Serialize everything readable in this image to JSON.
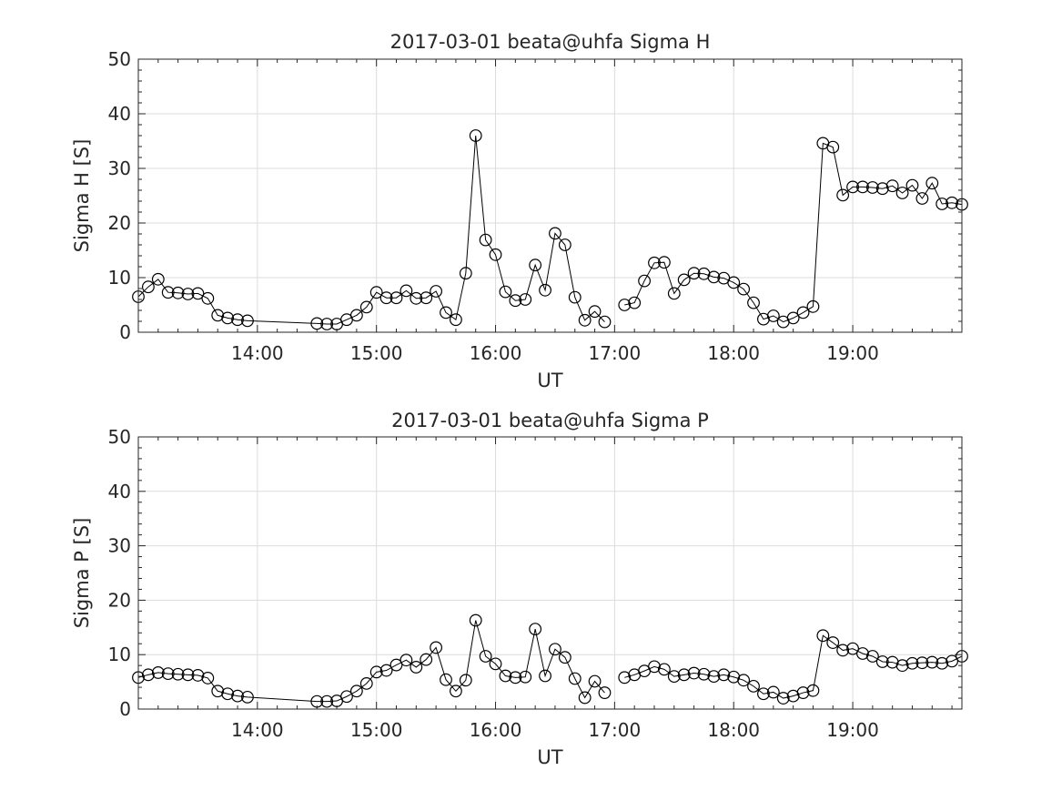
{
  "chart_data": [
    {
      "type": "line",
      "title": "2017-03-01  beata@uhfa Sigma H",
      "xlabel": "UT",
      "ylabel": "Sigma H [S]",
      "ylim": [
        0,
        50
      ],
      "yticks": [
        0,
        10,
        20,
        30,
        40,
        50
      ],
      "xlim": [
        "13:00",
        "19:55"
      ],
      "xticks": [
        "14:00",
        "15:00",
        "16:00",
        "17:00",
        "18:00",
        "19:00"
      ],
      "grid": true,
      "marker": "circle",
      "series": [
        {
          "x": [
            "13:00",
            "13:05",
            "13:10",
            "13:15",
            "13:20",
            "13:25",
            "13:30",
            "13:35",
            "13:40",
            "13:45",
            "13:50",
            "13:55",
            "14:30",
            "14:35",
            "14:40",
            "14:45",
            "14:50",
            "14:55",
            "15:00",
            "15:05",
            "15:10",
            "15:15",
            "15:20",
            "15:25",
            "15:30",
            "15:35",
            "15:40",
            "15:45",
            "15:50",
            "15:55",
            "16:00",
            "16:05",
            "16:10",
            "16:15",
            "16:20",
            "16:25",
            "16:30",
            "16:35",
            "16:40",
            "16:45",
            "16:50",
            "16:55",
            null,
            "17:05",
            "17:10",
            "17:15",
            "17:20",
            "17:25",
            "17:30",
            "17:35",
            "17:40",
            "17:45",
            "17:50",
            "17:55",
            "18:00",
            "18:05",
            "18:10",
            "18:15",
            "18:20",
            "18:25",
            "18:30",
            "18:35",
            "18:40",
            "18:45",
            "18:50",
            "18:55",
            "19:00",
            "19:05",
            "19:10",
            "19:15",
            "19:20",
            "19:25",
            "19:30",
            "19:35",
            "19:40",
            "19:45",
            "19:50",
            "19:55"
          ],
          "y": [
            6.5,
            8.3,
            9.7,
            7.3,
            7.2,
            7.0,
            7.1,
            6.2,
            3.1,
            2.6,
            2.3,
            2.1,
            1.6,
            1.5,
            1.5,
            2.3,
            3.1,
            4.6,
            7.3,
            6.3,
            6.3,
            7.6,
            6.2,
            6.3,
            7.5,
            3.6,
            2.3,
            10.8,
            36.0,
            16.9,
            14.2,
            7.4,
            5.8,
            6.0,
            12.3,
            7.7,
            18.1,
            16.0,
            6.4,
            2.2,
            3.8,
            1.9,
            null,
            5.0,
            5.4,
            9.4,
            12.7,
            12.8,
            7.1,
            9.6,
            10.8,
            10.7,
            10.1,
            9.9,
            9.1,
            7.9,
            5.4,
            2.4,
            3.0,
            1.9,
            2.6,
            3.6,
            4.7,
            34.6,
            33.9,
            25.1,
            26.6,
            26.6,
            26.5,
            26.3,
            26.8,
            25.5,
            26.9,
            24.5,
            27.3,
            23.5,
            23.7,
            23.4
          ]
        }
      ]
    },
    {
      "type": "line",
      "title": "2017-03-01  beata@uhfa Sigma P",
      "xlabel": "UT",
      "ylabel": "Sigma P [S]",
      "ylim": [
        0,
        50
      ],
      "yticks": [
        0,
        10,
        20,
        30,
        40,
        50
      ],
      "xlim": [
        "13:00",
        "19:55"
      ],
      "xticks": [
        "14:00",
        "15:00",
        "16:00",
        "17:00",
        "18:00",
        "19:00"
      ],
      "grid": true,
      "marker": "circle",
      "series": [
        {
          "x": [
            "13:00",
            "13:05",
            "13:10",
            "13:15",
            "13:20",
            "13:25",
            "13:30",
            "13:35",
            "13:40",
            "13:45",
            "13:50",
            "13:55",
            "14:30",
            "14:35",
            "14:40",
            "14:45",
            "14:50",
            "14:55",
            "15:00",
            "15:05",
            "15:10",
            "15:15",
            "15:20",
            "15:25",
            "15:30",
            "15:35",
            "15:40",
            "15:45",
            "15:50",
            "15:55",
            "16:00",
            "16:05",
            "16:10",
            "16:15",
            "16:20",
            "16:25",
            "16:30",
            "16:35",
            "16:40",
            "16:45",
            "16:50",
            "16:55",
            null,
            "17:05",
            "17:10",
            "17:15",
            "17:20",
            "17:25",
            "17:30",
            "17:35",
            "17:40",
            "17:45",
            "17:50",
            "17:55",
            "18:00",
            "18:05",
            "18:10",
            "18:15",
            "18:20",
            "18:25",
            "18:30",
            "18:35",
            "18:40",
            "18:45",
            "18:50",
            "18:55",
            "19:00",
            "19:05",
            "19:10",
            "19:15",
            "19:20",
            "19:25",
            "19:30",
            "19:35",
            "19:40",
            "19:45",
            "19:50",
            "19:55"
          ],
          "y": [
            5.8,
            6.3,
            6.7,
            6.5,
            6.4,
            6.3,
            6.2,
            5.7,
            3.3,
            2.8,
            2.4,
            2.2,
            1.4,
            1.4,
            1.5,
            2.3,
            3.3,
            4.7,
            6.8,
            7.1,
            8.1,
            9.0,
            7.7,
            9.1,
            11.3,
            5.4,
            3.3,
            5.3,
            16.3,
            9.7,
            8.3,
            6.1,
            5.8,
            5.9,
            14.7,
            6.1,
            11.0,
            9.5,
            5.6,
            2.1,
            5.1,
            3.0,
            null,
            5.8,
            6.3,
            7.0,
            7.8,
            7.3,
            6.0,
            6.3,
            6.6,
            6.4,
            6.0,
            6.3,
            5.9,
            5.3,
            4.2,
            2.8,
            3.1,
            2.0,
            2.4,
            3.0,
            3.4,
            13.5,
            12.2,
            10.8,
            11.1,
            10.2,
            9.7,
            8.7,
            8.6,
            8.0,
            8.4,
            8.5,
            8.6,
            8.4,
            8.8,
            9.7
          ]
        }
      ]
    }
  ]
}
